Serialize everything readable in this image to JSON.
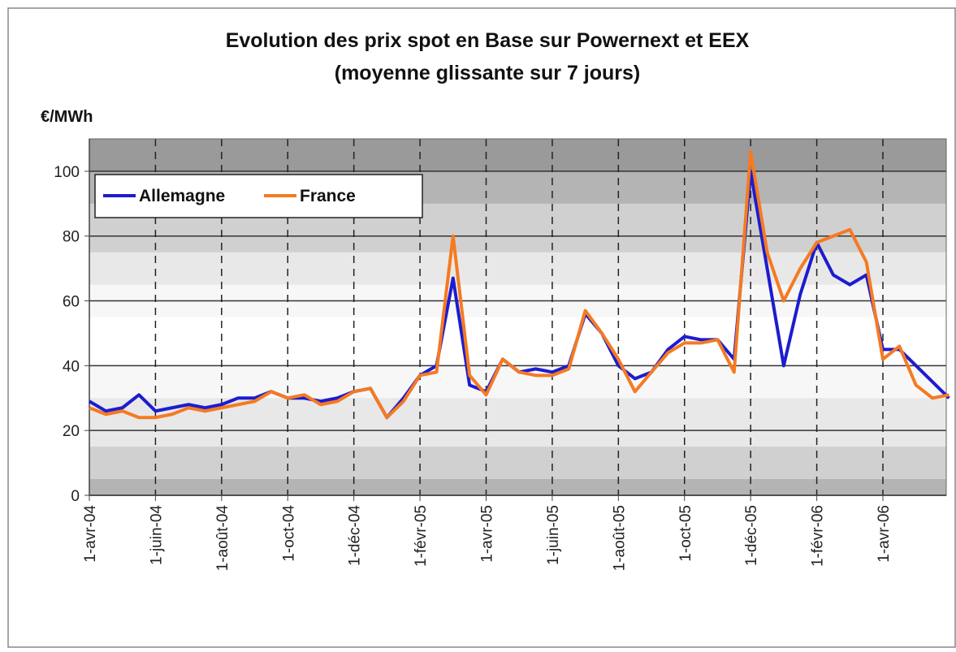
{
  "chart_data": {
    "type": "line",
    "title": "Evolution des prix spot en Base sur Powernext et EEX",
    "subtitle": "(moyenne glissante sur 7 jours)",
    "y_label": "€/MWh",
    "categories": [
      "1-avr-04",
      null,
      null,
      null,
      "1-juin-04",
      null,
      null,
      null,
      "1-août-04",
      null,
      null,
      null,
      "1-oct-04",
      null,
      null,
      null,
      "1-déc-04",
      null,
      null,
      null,
      "1-févr-05",
      null,
      null,
      null,
      "1-avr-05",
      null,
      null,
      null,
      "1-juin-05",
      null,
      null,
      null,
      "1-août-05",
      null,
      null,
      null,
      "1-oct-05",
      null,
      null,
      null,
      "1-déc-05",
      null,
      null,
      null,
      "1-févr-06",
      null,
      null,
      null,
      "1-avr-06",
      null,
      null,
      null,
      null
    ],
    "series": [
      {
        "name": "Allemagne",
        "color": "#1c1ccf",
        "values": [
          29,
          26,
          27,
          31,
          26,
          27,
          28,
          27,
          28,
          30,
          30,
          32,
          30,
          30,
          29,
          30,
          32,
          33,
          24,
          30,
          37,
          40,
          67,
          34,
          32,
          42,
          38,
          39,
          38,
          40,
          56,
          50,
          40,
          36,
          38,
          45,
          49,
          48,
          48,
          42,
          100,
          70,
          40,
          62,
          78,
          68,
          65,
          68,
          45,
          45,
          40,
          35,
          30
        ]
      },
      {
        "name": "France",
        "color": "#f57a22",
        "values": [
          27,
          25,
          26,
          24,
          24,
          25,
          27,
          26,
          27,
          28,
          29,
          32,
          30,
          31,
          28,
          29,
          32,
          33,
          24,
          29,
          37,
          38,
          80,
          37,
          31,
          42,
          38,
          37,
          37,
          39,
          57,
          50,
          42,
          32,
          38,
          44,
          47,
          47,
          48,
          38,
          106,
          75,
          60,
          70,
          78,
          80,
          82,
          72,
          42,
          46,
          34,
          30,
          31
        ]
      }
    ],
    "ylim": [
      0,
      110
    ],
    "yticks": [
      0,
      20,
      40,
      60,
      80,
      100
    ],
    "grid": true,
    "legend": "top-left"
  }
}
